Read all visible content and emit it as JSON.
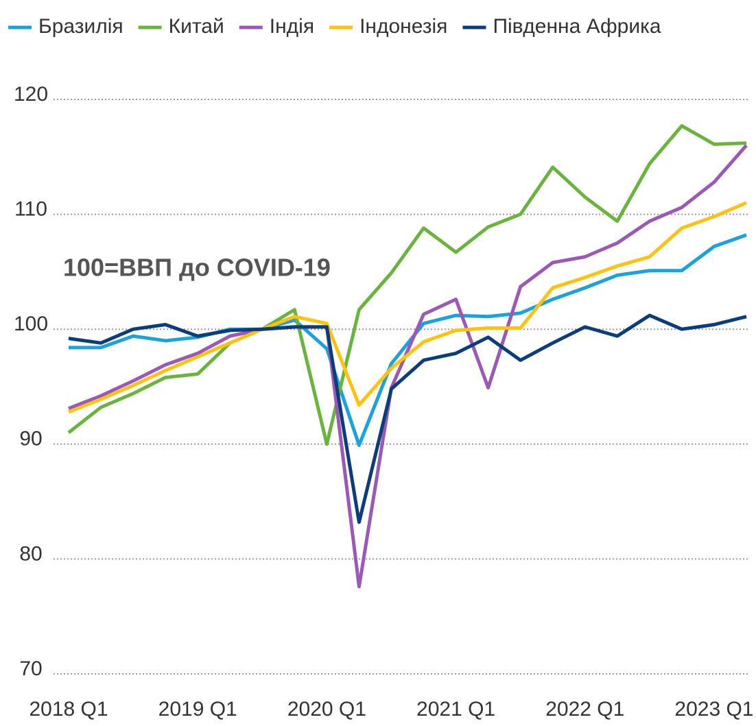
{
  "chart_data": {
    "type": "line",
    "annotation": "100=ВВП до COVID-19",
    "categories": [
      "2018 Q1",
      null,
      null,
      null,
      "2019 Q1",
      null,
      null,
      null,
      "2020 Q1",
      null,
      null,
      null,
      "2021 Q1",
      null,
      null,
      null,
      "2022 Q1",
      null,
      null,
      null,
      "2023 Q1",
      null
    ],
    "ylim": [
      70,
      120
    ],
    "yticks": [
      70,
      80,
      90,
      100,
      110,
      120
    ],
    "grid": true,
    "legend": "top",
    "series": [
      {
        "name": "Бразилія",
        "color": "#1ba1dc",
        "values": [
          98.4,
          98.4,
          99.4,
          99.0,
          99.3,
          100,
          100,
          100.8,
          98.3,
          89.9,
          97.0,
          100.5,
          101.2,
          101.1,
          101.4,
          102.6,
          103.6,
          104.7,
          105.1,
          105.1,
          107.2,
          108.2
        ]
      },
      {
        "name": "Китай",
        "color": "#6ab43e",
        "values": [
          91.0,
          93.2,
          94.4,
          95.8,
          96.1,
          98.8,
          100,
          101.7,
          90.0,
          101.7,
          104.9,
          108.8,
          106.7,
          108.9,
          110.0,
          114.1,
          111.5,
          109.4,
          114.4,
          117.7,
          116.1,
          116.2
        ]
      },
      {
        "name": "Індія",
        "color": "#9b59b6",
        "values": [
          93.1,
          94.2,
          95.5,
          96.9,
          97.9,
          99.4,
          100,
          100.2,
          100.2,
          77.6,
          94.9,
          101.3,
          102.6,
          94.9,
          103.7,
          105.8,
          106.3,
          107.5,
          109.4,
          110.6,
          112.8,
          116.0
        ]
      },
      {
        "name": "Індонезія",
        "color": "#ffc20e",
        "values": [
          92.8,
          93.9,
          95.1,
          96.4,
          97.6,
          98.8,
          100,
          101.1,
          100.5,
          93.4,
          96.6,
          98.9,
          99.9,
          100.1,
          100.1,
          103.6,
          104.5,
          105.5,
          106.3,
          108.8,
          109.8,
          111.0
        ]
      },
      {
        "name": "Південна Африка",
        "color": "#0a3d7a",
        "values": [
          99.2,
          98.8,
          100,
          100.4,
          99.4,
          99.9,
          100,
          100.2,
          100.2,
          83.2,
          94.8,
          97.3,
          97.9,
          99.3,
          97.3,
          98.8,
          100.2,
          99.4,
          101.2,
          100,
          100.4,
          101.1
        ]
      }
    ]
  }
}
